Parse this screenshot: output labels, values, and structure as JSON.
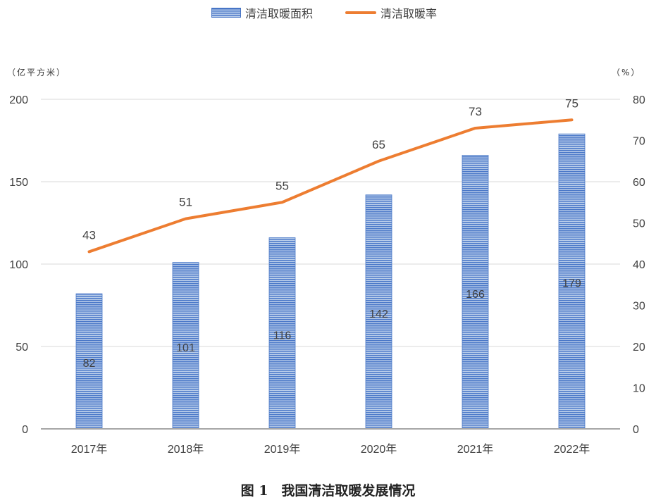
{
  "legend": {
    "bar_label": "清洁取暖面积",
    "line_label": "清洁取暖率"
  },
  "axes": {
    "left_unit": "（亿平方米）",
    "right_unit": "（%）"
  },
  "caption": "图 1　我国清洁取暖发展情况",
  "colors": {
    "bar_dark": "#4a78c8",
    "bar_light": "#b9cdea",
    "line": "#ed7d31",
    "axis": "#a6a6a6",
    "grid": "#d9d9d9",
    "text": "#404040"
  },
  "chart_data": {
    "type": "bar",
    "categories": [
      "2017年",
      "2018年",
      "2019年",
      "2020年",
      "2021年",
      "2022年"
    ],
    "series": [
      {
        "name": "清洁取暖面积",
        "type": "bar",
        "axis": "left",
        "values": [
          82,
          101,
          116,
          142,
          166,
          179
        ],
        "data_labels": [
          "82",
          "101",
          "116",
          "142",
          "166",
          "179"
        ]
      },
      {
        "name": "清洁取暖率",
        "type": "line",
        "axis": "right",
        "values": [
          43,
          51,
          55,
          65,
          73,
          75
        ],
        "data_labels": [
          "43",
          "51",
          "55",
          "65",
          "73",
          "75"
        ]
      }
    ],
    "y_left": {
      "ylim": [
        0,
        200
      ],
      "ticks": [
        "0",
        "50",
        "100",
        "150",
        "200"
      ]
    },
    "y_right": {
      "ylim": [
        0,
        80
      ],
      "ticks": [
        "0",
        "10",
        "20",
        "30",
        "40",
        "50",
        "60",
        "70",
        "80"
      ]
    },
    "grid": true,
    "legend_position": "top-center"
  }
}
